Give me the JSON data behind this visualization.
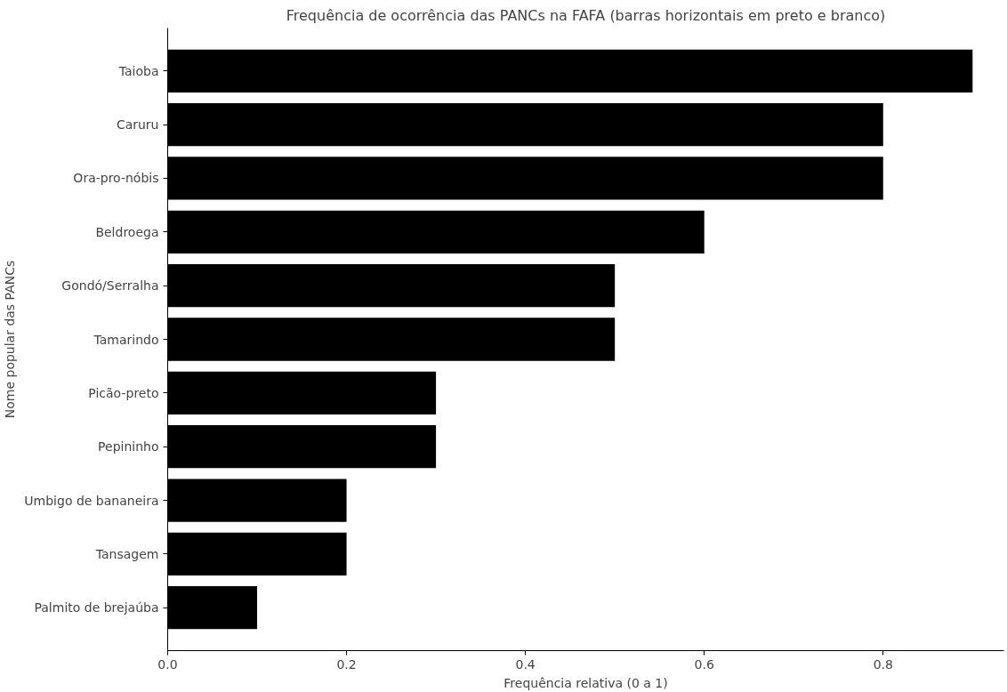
{
  "chart_data": {
    "type": "bar",
    "orientation": "horizontal",
    "title": "Frequência de ocorrência das PANCs na FAFA (barras horizontais em preto e branco)",
    "xlabel": "Frequência relativa (0 a 1)",
    "ylabel": "Nome popular das PANCs",
    "categories": [
      "Taioba",
      "Caruru",
      "Ora-pro-nóbis",
      "Beldroega",
      "Gondó/Serralha",
      "Tamarindo",
      "Picão-preto",
      "Pepininho",
      "Umbigo de bananeira",
      "Tansagem",
      "Palmito de brejaúba"
    ],
    "values": [
      0.9,
      0.8,
      0.8,
      0.6,
      0.5,
      0.5,
      0.3,
      0.3,
      0.2,
      0.2,
      0.1
    ],
    "color": "#000000",
    "xlim": [
      0,
      0.935
    ],
    "xticks": [
      {
        "value": 0,
        "label": "0.0"
      },
      {
        "value": 0.2,
        "label": "0.2"
      },
      {
        "value": 0.4,
        "label": "0.4"
      },
      {
        "value": 0.6,
        "label": "0.6"
      },
      {
        "value": 0.8,
        "label": "0.8"
      }
    ],
    "grid": false
  }
}
